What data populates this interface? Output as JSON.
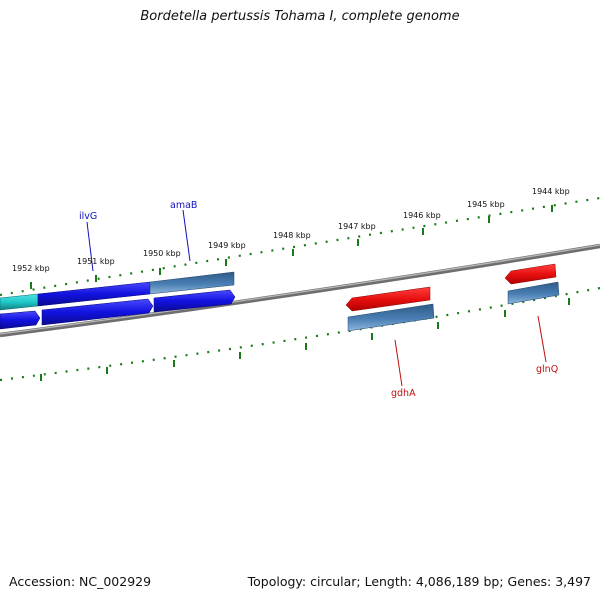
{
  "title": "Bordetella pertussis Tohama I, complete genome",
  "footer": {
    "accession": "Accession: NC_002929",
    "summary": "Topology: circular; Length: 4,086,189 bp; Genes: 3,497"
  },
  "colors": {
    "background": "#ffffff",
    "backbone": "#7d7d7d",
    "tick": "#1a7a1a",
    "label_forward": "#1010c0",
    "label_reverse": "#c01010",
    "gene_blue": "#1414e0",
    "gene_steel": "#4a7fb5",
    "gene_cyan": "#20c8c8",
    "gene_red": "#e81010"
  },
  "ticks": [
    {
      "label": "1952 kbp"
    },
    {
      "label": "1951 kbp"
    },
    {
      "label": "1950 kbp"
    },
    {
      "label": "1949 kbp"
    },
    {
      "label": "1948 kbp"
    },
    {
      "label": "1947 kbp"
    },
    {
      "label": "1946 kbp"
    },
    {
      "label": "1945 kbp"
    },
    {
      "label": "1944 kbp"
    }
  ],
  "gene_labels": [
    {
      "name": "ilvG",
      "strand": "forward"
    },
    {
      "name": "amaB",
      "strand": "forward"
    },
    {
      "name": "gdhA",
      "strand": "reverse"
    },
    {
      "name": "glnQ",
      "strand": "reverse"
    }
  ]
}
